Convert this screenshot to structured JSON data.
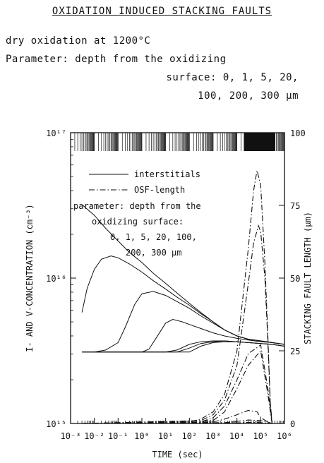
{
  "header": {
    "title": "OXIDATION INDUCED STACKING FAULTS",
    "line1": "dry oxidation at 1200°C",
    "line2": "Parameter: depth from the oxidizing",
    "line3": "surface: 0, 1, 5, 20,",
    "line4": "100, 200, 300 μm"
  },
  "chart_data": {
    "type": "line",
    "xlabel": "TIME (sec)",
    "ylabel": "I- AND V-CONCENTRATION (cm⁻³)",
    "y2label": "STACKING FAULT LENGTH (μm)",
    "xscale": "log",
    "yscale": "log",
    "xlim": [
      0.001,
      1000000
    ],
    "ylim": [
      1000000000000000.0,
      1e+17
    ],
    "y2lim": [
      0,
      100
    ],
    "x_ticks": [
      "10⁻³",
      "10⁻²",
      "10⁻¹",
      "10⁰",
      "10¹",
      "10²",
      "10³",
      "10⁴",
      "10⁵",
      "10⁶"
    ],
    "y_ticks": [
      "10¹⁵",
      "10¹⁶",
      "10¹⁷"
    ],
    "y2_ticks": [
      "0",
      "25",
      "50",
      "75",
      "100"
    ],
    "legend": {
      "placement": "upper-left",
      "entries": [
        "interstitials",
        "OSF-length"
      ],
      "note": [
        "parameter: depth from the",
        "oxidizing surface:",
        "0, 1, 5, 20, 100,",
        "200, 300 μm"
      ]
    },
    "series": [
      {
        "group": "interstitials",
        "depth_um": 0,
        "x": [
          0.003,
          0.01,
          0.03,
          0.1,
          0.3,
          1,
          3,
          10,
          30,
          100,
          300,
          1000,
          3000,
          10000,
          30000,
          100000,
          300000,
          1000000
        ],
        "y": [
          3.2e+16,
          2.7e+16,
          2.2e+16,
          1.8e+16,
          1.5e+16,
          1.28e+16,
          1.08e+16,
          9200000000000000.0,
          7900000000000000.0,
          6700000000000000.0,
          5800000000000000.0,
          5000000000000000.0,
          4400000000000000.0,
          4000000000000000.0,
          3800000000000000.0,
          3700000000000000.0,
          3600000000000000.0,
          3500000000000000.0
        ]
      },
      {
        "group": "interstitials",
        "depth_um": 1,
        "x": [
          0.003,
          0.005,
          0.01,
          0.02,
          0.05,
          0.1,
          0.3,
          1,
          3,
          10,
          30,
          100,
          300,
          1000,
          3000,
          10000,
          30000,
          100000,
          300000,
          1000000
        ],
        "y": [
          5800000000000000.0,
          8500000000000000.0,
          1.15e+16,
          1.35e+16,
          1.42e+16,
          1.38e+16,
          1.25e+16,
          1.1e+16,
          9600000000000000.0,
          8400000000000000.0,
          7400000000000000.0,
          6500000000000000.0,
          5700000000000000.0,
          5000000000000000.0,
          4400000000000000.0,
          4000000000000000.0,
          3800000000000000.0,
          3700000000000000.0,
          3600000000000000.0,
          3500000000000000.0
        ]
      },
      {
        "group": "interstitials",
        "depth_um": 5,
        "x": [
          0.01,
          0.03,
          0.1,
          0.2,
          0.5,
          1,
          3,
          10,
          30,
          100,
          300,
          1000,
          3000,
          10000,
          30000,
          100000,
          300000,
          1000000
        ],
        "y": [
          3100000000000000.0,
          3200000000000000.0,
          3600000000000000.0,
          4600000000000000.0,
          6600000000000000.0,
          7800000000000000.0,
          8100000000000000.0,
          7600000000000000.0,
          6900000000000000.0,
          6200000000000000.0,
          5500000000000000.0,
          4900000000000000.0,
          4400000000000000.0,
          4000000000000000.0,
          3800000000000000.0,
          3700000000000000.0,
          3600000000000000.0,
          3500000000000000.0
        ]
      },
      {
        "group": "interstitials",
        "depth_um": 20,
        "x": [
          0.01,
          1,
          2,
          5,
          10,
          20,
          50,
          100,
          300,
          1000,
          3000,
          10000,
          30000,
          100000,
          300000,
          1000000
        ],
        "y": [
          3100000000000000.0,
          3100000000000000.0,
          3250000000000000.0,
          4100000000000000.0,
          4900000000000000.0,
          5200000000000000.0,
          5000000000000000.0,
          4800000000000000.0,
          4500000000000000.0,
          4200000000000000.0,
          4000000000000000.0,
          3850000000000000.0,
          3750000000000000.0,
          3650000000000000.0,
          3600000000000000.0,
          3500000000000000.0
        ]
      },
      {
        "group": "interstitials",
        "depth_um": 100,
        "x": [
          0.003,
          10,
          30,
          100,
          300,
          1000,
          3000,
          10000,
          30000,
          100000,
          300000,
          1000000
        ],
        "y": [
          3100000000000000.0,
          3100000000000000.0,
          3200000000000000.0,
          3500000000000000.0,
          3650000000000000.0,
          3700000000000000.0,
          3700000000000000.0,
          3650000000000000.0,
          3600000000000000.0,
          3550000000000000.0,
          3500000000000000.0,
          3400000000000000.0
        ]
      },
      {
        "group": "interstitials",
        "depth_um": 200,
        "x": [
          0.003,
          30,
          100,
          300,
          1000,
          3000,
          10000,
          30000,
          100000,
          300000,
          1000000
        ],
        "y": [
          3100000000000000.0,
          3100000000000000.0,
          3300000000000000.0,
          3550000000000000.0,
          3650000000000000.0,
          3700000000000000.0,
          3650000000000000.0,
          3600000000000000.0,
          3550000000000000.0,
          3500000000000000.0,
          3400000000000000.0
        ]
      },
      {
        "group": "interstitials",
        "depth_um": 300,
        "x": [
          0.003,
          100,
          300,
          1000,
          3000,
          10000,
          30000,
          100000,
          300000,
          1000000
        ],
        "y": [
          3100000000000000.0,
          3100000000000000.0,
          3400000000000000.0,
          3600000000000000.0,
          3650000000000000.0,
          3650000000000000.0,
          3600000000000000.0,
          3550000000000000.0,
          3500000000000000.0,
          3400000000000000.0
        ]
      },
      {
        "group": "OSF-length",
        "depth_um": 0,
        "x": [
          0.003,
          100,
          300,
          1000,
          3000,
          10000,
          30000,
          50000,
          70000,
          100000,
          150000,
          200000,
          250000,
          300000
        ],
        "y2": [
          0,
          0.5,
          1.5,
          4,
          10,
          25,
          60,
          80,
          87,
          82,
          55,
          30,
          8,
          0
        ]
      },
      {
        "group": "OSF-length",
        "depth_um": 1,
        "x": [
          0.003,
          300,
          1000,
          3000,
          10000,
          30000,
          50000,
          80000,
          100000,
          150000,
          200000,
          250000,
          300000
        ],
        "y2": [
          0,
          1,
          3,
          8,
          20,
          48,
          62,
          68,
          66,
          50,
          28,
          8,
          0
        ]
      },
      {
        "group": "OSF-length",
        "depth_um": 5,
        "x": [
          0.003,
          300,
          1000,
          3000,
          10000,
          30000,
          100000,
          200000,
          300000
        ],
        "y2": [
          0,
          0.5,
          2,
          6,
          15,
          24,
          27,
          12,
          0
        ]
      },
      {
        "group": "OSF-length",
        "depth_um": 20,
        "x": [
          0.003,
          1000,
          3000,
          10000,
          30000,
          100000,
          200000,
          300000
        ],
        "y2": [
          0,
          1,
          4,
          12,
          20,
          25,
          10,
          0
        ]
      },
      {
        "group": "OSF-length",
        "depth_um": 100,
        "x": [
          0.003,
          1000,
          3000,
          10000,
          30000,
          70000,
          100000,
          200000,
          300000
        ],
        "y2": [
          0,
          0.5,
          1.5,
          3,
          4.5,
          4,
          2,
          0.5,
          0
        ]
      },
      {
        "group": "OSF-length",
        "depth_um": 200,
        "x": [
          0.003,
          3000,
          10000,
          30000,
          100000,
          200000,
          300000
        ],
        "y2": [
          0,
          0.3,
          0.7,
          1.2,
          1,
          0.4,
          0
        ]
      },
      {
        "group": "OSF-length",
        "depth_um": 300,
        "x": [
          0.003,
          10000,
          30000,
          100000,
          300000
        ],
        "y2": [
          0,
          0.2,
          0.4,
          0.3,
          0
        ]
      }
    ]
  }
}
